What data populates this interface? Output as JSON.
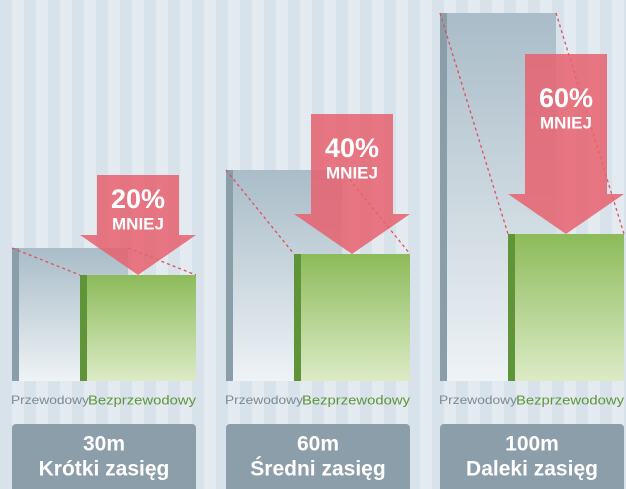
{
  "chart_data": {
    "type": "bar",
    "categories": [
      "30m",
      "60m",
      "100m"
    ],
    "subtitles": [
      "Krótki zasięg",
      "Średni zasięg",
      "Daleki zasięg"
    ],
    "series": [
      {
        "name": "Przewodowy",
        "color": "#a9bcc8",
        "values": [
          133,
          211,
          368
        ]
      },
      {
        "name": "Bezprzewodowy",
        "color": "#8cbb5a",
        "values": [
          106,
          127,
          147
        ]
      }
    ],
    "reductions": {
      "values": [
        20,
        40,
        60
      ],
      "value_labels": [
        "20%",
        "40%",
        "60%"
      ],
      "labels": [
        "MNIEJ",
        "MNIEJ",
        "MNIEJ"
      ],
      "color": "#e8606e"
    }
  }
}
